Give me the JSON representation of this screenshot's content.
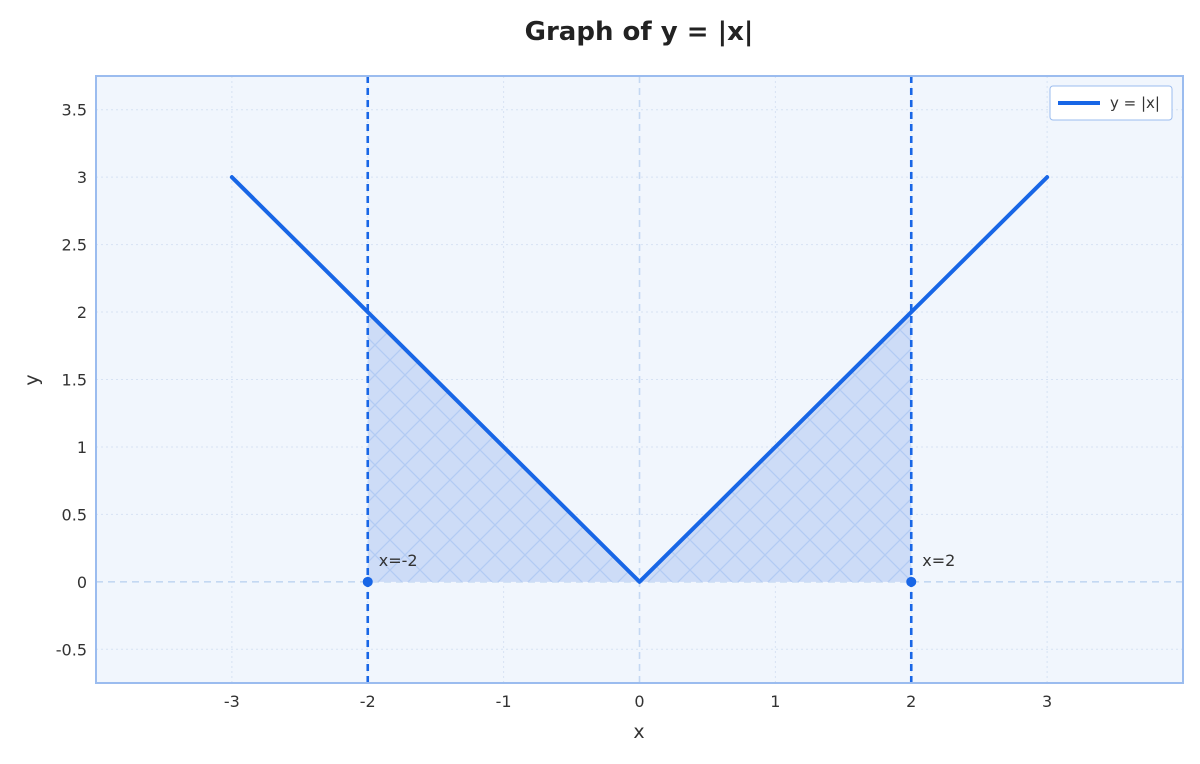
{
  "colors": {
    "line": "#1866e6",
    "fill": "#cddcf7",
    "plot_background": "#f1f6fd",
    "frame": "#9bbcef",
    "grid": "#d6e2f4",
    "zero_line": "#c4d8f2",
    "hatch": "#b3cbf3"
  },
  "chart_data": {
    "type": "line",
    "title": "Graph of y = |x|",
    "xlabel": "x",
    "ylabel": "y",
    "xlim": [
      -4,
      4
    ],
    "ylim": [
      -0.75,
      3.75
    ],
    "xticks": [
      -3,
      -2,
      -1,
      0,
      1,
      2,
      3
    ],
    "xtick_labels": [
      "-3",
      "-2",
      "-1",
      "0",
      "1",
      "2",
      "3"
    ],
    "yticks": [
      -0.5,
      0,
      0.5,
      1,
      1.5,
      2,
      2.5,
      3,
      3.5
    ],
    "ytick_labels": [
      "-0.5",
      "0",
      "0.5",
      "1",
      "1.5",
      "2",
      "2.5",
      "3",
      "3.5"
    ],
    "grid": true,
    "legend_position": "top-right",
    "series": [
      {
        "name": "y = |x|",
        "x": [
          -3,
          0,
          3
        ],
        "y": [
          3,
          0,
          3
        ]
      }
    ],
    "shaded_region": {
      "x_from": -2,
      "x_to": 2,
      "hatch": "crosshatch"
    },
    "vertical_lines": [
      {
        "x": -2,
        "style": "dashed"
      },
      {
        "x": 2,
        "style": "dashed"
      }
    ],
    "annotations": [
      {
        "text": "x=-2",
        "x": -2,
        "y": 0
      },
      {
        "text": "x=2",
        "x": 2,
        "y": 0
      }
    ]
  }
}
